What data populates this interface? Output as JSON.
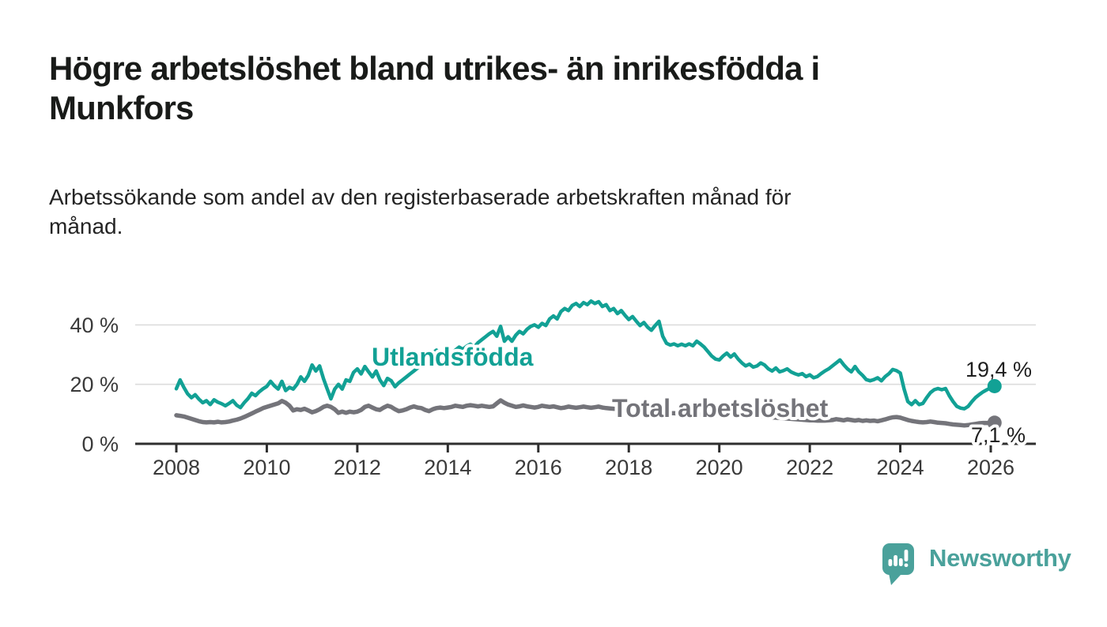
{
  "title_line1": "Högre arbetslöshet bland utrikes- än inrikesfödda i",
  "title_line2": "Munkfors",
  "subtitle_line1": "Arbetssökande som andel av den registerbaserade arbetskraften månad för",
  "subtitle_line2": "månad.",
  "branding": {
    "logo_text": "Newsworthy",
    "logo_color": "#4aa19b"
  },
  "colors": {
    "accent_teal": "#12a195",
    "line_gray": "#74747a",
    "axis": "#2e2e2e",
    "grid": "#dcdcdc",
    "label_dark": "#1f1f1f"
  },
  "chart_data": {
    "type": "line",
    "x_unit": "month",
    "x_range": [
      "2008-01",
      "2026-02"
    ],
    "x_ticks": [
      "2008",
      "2010",
      "2012",
      "2014",
      "2016",
      "2018",
      "2020",
      "2022",
      "2024",
      "2026"
    ],
    "y_ticks": [
      {
        "label": "0 %",
        "value": 0
      },
      {
        "label": "20 %",
        "value": 20
      },
      {
        "label": "40 %",
        "value": 40
      }
    ],
    "ylim": [
      0,
      50
    ],
    "grid": "horizontal",
    "legend": "inline-labels",
    "series": [
      {
        "name": "Utlandsfödda",
        "color": "#12a195",
        "end_label": "19,4 %",
        "end_value": 19.4,
        "values": [
          18.5,
          21.5,
          19.0,
          16.8,
          15.5,
          16.5,
          15.0,
          13.8,
          14.5,
          13.2,
          14.8,
          14.0,
          13.5,
          12.8,
          13.6,
          14.5,
          13.0,
          12.2,
          13.8,
          15.2,
          17.0,
          16.2,
          17.5,
          18.5,
          19.3,
          21.0,
          19.5,
          18.4,
          21.0,
          17.9,
          19.0,
          18.4,
          20.0,
          22.5,
          21.0,
          23.0,
          26.5,
          24.5,
          26.2,
          22.0,
          18.5,
          15.1,
          18.4,
          20.0,
          18.4,
          21.5,
          21.0,
          24.0,
          25.2,
          23.5,
          26.0,
          24.2,
          22.5,
          24.5,
          21.5,
          19.6,
          22.0,
          21.2,
          19.2,
          20.5,
          21.5,
          22.5,
          23.5,
          24.5,
          25.5,
          26.5,
          27.5,
          28.5,
          30.5,
          31.5,
          30.5,
          29.5,
          29.5,
          30.5,
          31.5,
          32.5,
          31.8,
          32.8,
          33.5,
          32.5,
          34.0,
          35.0,
          36.0,
          37.0,
          37.8,
          36.2,
          39.5,
          34.5,
          36.0,
          34.5,
          36.5,
          37.8,
          37.0,
          38.5,
          39.5,
          40.0,
          39.2,
          40.5,
          39.8,
          42.0,
          43.0,
          42.0,
          44.5,
          45.5,
          44.8,
          46.5,
          47.2,
          46.2,
          47.5,
          46.8,
          48.0,
          47.2,
          47.8,
          46.2,
          46.8,
          44.8,
          45.5,
          43.8,
          44.8,
          43.2,
          41.8,
          42.8,
          41.2,
          39.8,
          40.8,
          39.2,
          38.2,
          39.8,
          41.2,
          36.2,
          33.8,
          33.2,
          33.6,
          33.0,
          33.5,
          33.0,
          33.6,
          33.0,
          34.5,
          33.6,
          32.5,
          31.0,
          29.5,
          28.5,
          28.2,
          29.5,
          30.5,
          29.2,
          30.2,
          28.5,
          27.2,
          26.2,
          26.8,
          25.8,
          26.2,
          27.2,
          26.5,
          25.2,
          24.5,
          25.5,
          24.2,
          24.6,
          25.2,
          24.2,
          23.6,
          23.2,
          23.6,
          22.6,
          23.2,
          22.2,
          22.6,
          23.6,
          24.5,
          25.2,
          26.2,
          27.2,
          28.2,
          26.6,
          25.2,
          24.2,
          26.0,
          24.2,
          23.0,
          21.6,
          21.2,
          21.6,
          22.2,
          21.2,
          22.6,
          23.6,
          25.0,
          24.6,
          23.8,
          18.5,
          14.2,
          13.2,
          14.5,
          13.2,
          13.6,
          15.5,
          17.2,
          18.2,
          18.6,
          18.2,
          18.6,
          16.2,
          14.2,
          12.6,
          12.0,
          11.8,
          12.6,
          14.2,
          15.6,
          16.6,
          17.5,
          18.2,
          18.8,
          19.4
        ]
      },
      {
        "name": "Total arbetslöshet",
        "color": "#74747a",
        "end_label": "7,1 %",
        "end_value": 7.1,
        "values": [
          9.6,
          9.4,
          9.2,
          8.8,
          8.4,
          8.0,
          7.6,
          7.3,
          7.2,
          7.3,
          7.2,
          7.4,
          7.2,
          7.3,
          7.5,
          7.8,
          8.1,
          8.5,
          9.0,
          9.6,
          10.2,
          10.8,
          11.4,
          12.0,
          12.4,
          12.8,
          13.2,
          13.6,
          14.4,
          13.8,
          12.8,
          11.2,
          11.6,
          11.4,
          11.8,
          11.2,
          10.6,
          11.0,
          11.6,
          12.4,
          12.8,
          12.4,
          11.6,
          10.4,
          10.8,
          10.4,
          10.8,
          10.6,
          10.8,
          11.4,
          12.4,
          12.8,
          12.2,
          11.6,
          11.4,
          12.2,
          12.8,
          12.4,
          11.6,
          11.0,
          11.2,
          11.6,
          12.2,
          12.6,
          12.2,
          12.0,
          11.4,
          11.0,
          11.6,
          12.0,
          12.2,
          12.0,
          12.2,
          12.4,
          12.8,
          12.6,
          12.4,
          12.8,
          13.0,
          12.8,
          12.6,
          12.8,
          12.6,
          12.4,
          12.6,
          13.6,
          14.6,
          13.8,
          13.2,
          12.8,
          12.4,
          12.6,
          12.9,
          12.6,
          12.4,
          12.2,
          12.4,
          12.8,
          12.6,
          12.4,
          12.6,
          12.3,
          12.0,
          12.2,
          12.5,
          12.3,
          12.1,
          12.3,
          12.5,
          12.3,
          12.1,
          12.3,
          12.5,
          12.2,
          12.0,
          11.9,
          11.8,
          11.7,
          11.6,
          11.5,
          11.4,
          11.3,
          11.2,
          11.1,
          11.0,
          10.9,
          10.8,
          10.7,
          10.6,
          10.5,
          10.4,
          10.3,
          10.3,
          10.2,
          10.1,
          10.0,
          10.0,
          9.9,
          9.9,
          9.8,
          9.8,
          9.7,
          9.7,
          9.6,
          9.6,
          9.7,
          10.0,
          10.4,
          10.6,
          10.5,
          10.4,
          10.2,
          10.0,
          9.8,
          9.6,
          9.4,
          9.2,
          9.0,
          8.9,
          8.8,
          8.7,
          8.6,
          8.5,
          8.4,
          8.3,
          8.2,
          8.1,
          8.0,
          7.9,
          7.9,
          7.8,
          7.8,
          7.8,
          7.9,
          8.0,
          8.3,
          8.1,
          7.9,
          8.2,
          8.0,
          7.8,
          8.0,
          7.7,
          7.9,
          7.7,
          7.8,
          7.6,
          7.9,
          8.2,
          8.6,
          8.9,
          9.0,
          8.8,
          8.4,
          8.0,
          7.7,
          7.5,
          7.3,
          7.2,
          7.3,
          7.5,
          7.3,
          7.1,
          7.0,
          6.9,
          6.7,
          6.5,
          6.4,
          6.3,
          6.2,
          6.3,
          6.5,
          6.7,
          6.9,
          7.0,
          7.0,
          7.0,
          7.1
        ]
      }
    ]
  }
}
